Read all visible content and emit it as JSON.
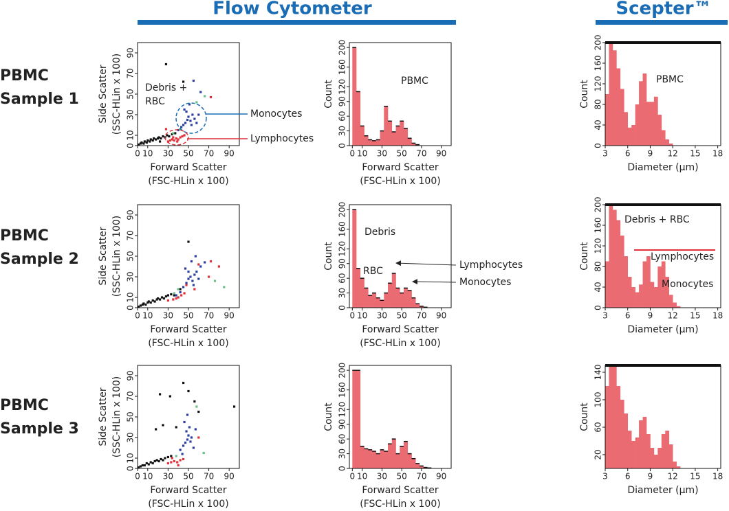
{
  "headers": [
    "Flow Cytometer",
    "Scepter™"
  ],
  "row_labels": [
    [
      "PBMC",
      "Sample 1"
    ],
    [
      "PBMC",
      "Sample 2"
    ],
    [
      "PBMC",
      "Sample 3"
    ]
  ],
  "chart_data": [
    {
      "type": "scatter",
      "xlabel": [
        "Forward Scatter",
        "(FSC-HLin x 100)"
      ],
      "ylabel": [
        "Side Scatter",
        "(SSC-HLin x 100)"
      ],
      "xlim": [
        0,
        100
      ],
      "ylim": [
        0,
        100
      ],
      "xticks": [
        0,
        10,
        30,
        50,
        70,
        90
      ],
      "yticks": [
        0,
        10,
        30,
        50,
        70,
        90
      ],
      "series": [
        {
          "color": "#111111",
          "x": [
            1,
            3,
            4,
            6,
            7,
            9,
            10,
            12,
            13,
            15,
            16,
            18,
            20,
            21,
            23,
            25,
            27,
            29,
            31,
            34,
            37,
            28,
            45,
            22
          ],
          "y": [
            1,
            2,
            3,
            2,
            4,
            3,
            5,
            4,
            6,
            5,
            7,
            6,
            7,
            8,
            7,
            9,
            8,
            10,
            9,
            11,
            12,
            79,
            62,
            4
          ]
        },
        {
          "color": "#e0303a",
          "x": [
            30,
            32,
            34,
            36,
            38,
            40,
            42,
            35,
            39,
            44,
            46,
            72,
            28
          ],
          "y": [
            4,
            5,
            6,
            5,
            7,
            6,
            8,
            8,
            4,
            9,
            10,
            47,
            16
          ]
        },
        {
          "color": "#2b3f9e",
          "x": [
            40,
            43,
            45,
            47,
            49,
            50,
            52,
            54,
            56,
            48,
            53,
            46,
            51,
            58,
            60,
            55,
            62
          ],
          "y": [
            15,
            18,
            20,
            22,
            25,
            28,
            24,
            30,
            26,
            33,
            20,
            35,
            40,
            22,
            30,
            63,
            52
          ]
        },
        {
          "color": "#6dbf8a",
          "x": [
            35,
            42,
            58,
            66
          ],
          "y": [
            12,
            16,
            42,
            48
          ]
        }
      ],
      "annotations": [
        "Debris +",
        "RBC",
        "Monocytes",
        "Lymphocytes"
      ]
    },
    {
      "type": "histogram",
      "color": "#ea6b72",
      "outline": true,
      "xlabel": [
        "Forward Scatter",
        "(FSC-HLin x 100)"
      ],
      "ylabel": "Count",
      "xlim": [
        -3,
        100
      ],
      "ylim": [
        0,
        210
      ],
      "xticks": [
        0,
        10,
        30,
        50,
        70,
        90
      ],
      "yticks": [
        0,
        30,
        60,
        90,
        120,
        160,
        200
      ],
      "bins": [
        0,
        4,
        8,
        12,
        16,
        20,
        24,
        28,
        32,
        36,
        40,
        44,
        48,
        52,
        56,
        60,
        64,
        68,
        72,
        76,
        80,
        84,
        88,
        92,
        96,
        100
      ],
      "counts": [
        200,
        110,
        40,
        20,
        12,
        10,
        12,
        30,
        80,
        50,
        28,
        40,
        50,
        35,
        15,
        5,
        2,
        0,
        0,
        0,
        0,
        0,
        0,
        0,
        0
      ],
      "annotations": [
        "PBMC"
      ]
    },
    {
      "type": "histogram",
      "color": "#ea6b72",
      "outline": false,
      "xlabel": [
        "Diameter (µm)"
      ],
      "ylabel": "Count",
      "xlim": [
        3,
        18.4
      ],
      "ylim": [
        0,
        200
      ],
      "xticks": [
        3,
        6,
        9,
        12,
        15,
        18
      ],
      "yticks": [
        0,
        40,
        80,
        120,
        160,
        200
      ],
      "bins": [
        3,
        3.5,
        4,
        4.5,
        5,
        5.5,
        6,
        6.5,
        7,
        7.5,
        8,
        8.5,
        9,
        9.5,
        10,
        10.5,
        11,
        11.5,
        12,
        12.5,
        13,
        13.5,
        14,
        14.5,
        15,
        15.5,
        16,
        16.5,
        17,
        17.5,
        18
      ],
      "counts": [
        100,
        200,
        185,
        150,
        110,
        65,
        35,
        40,
        80,
        125,
        140,
        85,
        85,
        95,
        60,
        30,
        12,
        4,
        0,
        0,
        0,
        0,
        0,
        0,
        0,
        0,
        0,
        0,
        0,
        0
      ],
      "annotations": [
        "PBMC"
      ]
    },
    {
      "type": "scatter",
      "xlabel": [
        "Forward Scatter",
        "(FSC-HLin x 100)"
      ],
      "ylabel": [
        "Side Scatter",
        "(SSC-HLin x 100)"
      ],
      "xlim": [
        0,
        100
      ],
      "ylim": [
        0,
        100
      ],
      "xticks": [
        0,
        10,
        30,
        50,
        70,
        90
      ],
      "yticks": [
        0,
        10,
        30,
        50,
        70,
        90
      ],
      "series": [
        {
          "color": "#111111",
          "x": [
            1,
            3,
            5,
            6,
            8,
            10,
            11,
            13,
            15,
            17,
            19,
            20,
            22,
            24,
            26,
            28,
            30,
            33,
            36,
            50,
            42
          ],
          "y": [
            1,
            2,
            3,
            4,
            3,
            5,
            6,
            5,
            7,
            6,
            8,
            9,
            8,
            10,
            9,
            11,
            12,
            13,
            12,
            64,
            18
          ]
        },
        {
          "color": "#e0303a",
          "x": [
            35,
            38,
            40,
            43,
            46,
            30,
            60,
            72,
            70,
            80,
            48,
            56
          ],
          "y": [
            8,
            9,
            10,
            12,
            14,
            7,
            42,
            45,
            30,
            40,
            22,
            18
          ]
        },
        {
          "color": "#2b3f9e",
          "x": [
            45,
            48,
            50,
            52,
            54,
            56,
            58,
            55,
            50,
            47,
            60,
            53,
            62,
            57,
            66,
            42,
            38
          ],
          "y": [
            20,
            24,
            28,
            30,
            26,
            32,
            35,
            22,
            35,
            38,
            28,
            45,
            40,
            50,
            44,
            15,
            12
          ]
        },
        {
          "color": "#6dbf8a",
          "x": [
            36,
            40,
            76,
            85
          ],
          "y": [
            14,
            18,
            26,
            20
          ]
        }
      ]
    },
    {
      "type": "histogram",
      "color": "#ea6b72",
      "outline": true,
      "xlabel": [
        "Forward Scatter",
        "(FSC-HLin x 100)"
      ],
      "ylabel": "Count",
      "xlim": [
        -3,
        100
      ],
      "ylim": [
        0,
        210
      ],
      "xticks": [
        0,
        10,
        30,
        50,
        70,
        90
      ],
      "yticks": [
        0,
        30,
        60,
        90,
        120,
        160,
        200
      ],
      "bins": [
        0,
        4,
        8,
        12,
        16,
        20,
        24,
        28,
        32,
        36,
        40,
        44,
        48,
        52,
        56,
        60,
        64,
        68,
        72,
        76,
        80,
        84,
        88,
        92,
        96,
        100
      ],
      "counts": [
        200,
        80,
        60,
        40,
        25,
        30,
        20,
        15,
        30,
        50,
        70,
        40,
        30,
        40,
        35,
        20,
        8,
        3,
        1,
        0,
        0,
        0,
        0,
        0,
        0
      ],
      "annotations": [
        "Debris",
        "RBC",
        "Lymphocytes",
        "Monocytes"
      ]
    },
    {
      "type": "histogram",
      "color": "#ea6b72",
      "outline": false,
      "xlabel": [
        "Diameter (µm)"
      ],
      "ylabel": "Count",
      "xlim": [
        3,
        18.4
      ],
      "ylim": [
        0,
        200
      ],
      "xticks": [
        3,
        6,
        9,
        12,
        15,
        18
      ],
      "yticks": [
        0,
        40,
        80,
        120,
        160,
        200
      ],
      "bins": [
        3,
        3.5,
        4,
        4.5,
        5,
        5.5,
        6,
        6.5,
        7,
        7.5,
        8,
        8.5,
        9,
        9.5,
        10,
        10.5,
        11,
        11.5,
        12,
        12.5,
        13,
        13.5,
        14,
        14.5,
        15,
        15.5,
        16,
        16.5,
        17,
        17.5,
        18
      ],
      "counts": [
        90,
        200,
        190,
        170,
        140,
        100,
        60,
        40,
        30,
        45,
        90,
        100,
        50,
        40,
        80,
        90,
        60,
        25,
        10,
        3,
        0,
        0,
        0,
        0,
        0,
        0,
        0,
        0,
        0,
        0
      ],
      "annotations": [
        "Debris + RBC",
        "Lymphocytes",
        "Monocytes"
      ]
    },
    {
      "type": "scatter",
      "xlabel": [
        "Forward Scatter",
        "(FSC-HLin x 100)"
      ],
      "ylabel": [
        "Side Scatter",
        "(SSC-HLin x 100)"
      ],
      "xlim": [
        0,
        100
      ],
      "ylim": [
        0,
        100
      ],
      "xticks": [
        0,
        10,
        30,
        50,
        70,
        90
      ],
      "yticks": [
        0,
        10,
        30,
        50,
        70,
        90
      ],
      "series": [
        {
          "color": "#111111",
          "x": [
            1,
            3,
            5,
            7,
            9,
            11,
            13,
            15,
            17,
            19,
            21,
            23,
            25,
            27,
            30,
            33,
            22,
            45,
            32,
            50,
            56,
            60,
            95,
            38,
            25,
            18
          ],
          "y": [
            1,
            2,
            3,
            3,
            5,
            4,
            6,
            5,
            7,
            8,
            7,
            9,
            8,
            10,
            11,
            12,
            72,
            83,
            70,
            75,
            65,
            55,
            60,
            40,
            42,
            38
          ]
        },
        {
          "color": "#e0303a",
          "x": [
            30,
            33,
            36,
            39,
            42,
            45,
            34,
            60,
            40
          ],
          "y": [
            5,
            6,
            7,
            6,
            8,
            9,
            10,
            30,
            3
          ]
        },
        {
          "color": "#2b3f9e",
          "x": [
            42,
            45,
            47,
            49,
            50,
            52,
            48,
            51,
            53,
            46,
            55,
            49,
            44,
            57
          ],
          "y": [
            18,
            22,
            25,
            28,
            32,
            26,
            36,
            40,
            30,
            45,
            20,
            52,
            14,
            38
          ]
        },
        {
          "color": "#6dbf8a",
          "x": [
            38,
            65,
            58
          ],
          "y": [
            12,
            15,
            60
          ]
        }
      ]
    },
    {
      "type": "histogram",
      "color": "#ea6b72",
      "outline": true,
      "xlabel": [
        "Forward Scatter",
        "(FSC-HLin x 100)"
      ],
      "ylabel": "Count",
      "xlim": [
        -3,
        100
      ],
      "ylim": [
        0,
        210
      ],
      "xticks": [
        0,
        10,
        30,
        50,
        70,
        90
      ],
      "yticks": [
        0,
        30,
        60,
        90,
        120,
        160,
        200
      ],
      "bins": [
        0,
        4,
        8,
        12,
        16,
        20,
        24,
        28,
        32,
        36,
        40,
        44,
        48,
        52,
        56,
        60,
        64,
        68,
        72,
        76,
        80,
        84,
        88,
        92,
        96,
        100
      ],
      "counts": [
        200,
        200,
        45,
        40,
        38,
        35,
        30,
        38,
        35,
        50,
        60,
        30,
        45,
        55,
        30,
        20,
        10,
        5,
        2,
        1,
        0,
        0,
        0,
        0,
        0
      ]
    },
    {
      "type": "histogram",
      "color": "#ea6b72",
      "outline": false,
      "xlabel": [
        "Diameter (µm)"
      ],
      "ylabel": "Count",
      "xlim": [
        3,
        18.4
      ],
      "ylim": [
        0,
        150
      ],
      "xticks": [
        3,
        6,
        9,
        12,
        15,
        18
      ],
      "yticks": [
        20,
        60,
        100,
        140
      ],
      "bins": [
        3,
        3.5,
        4,
        4.5,
        5,
        5.5,
        6,
        6.5,
        7,
        7.5,
        8,
        8.5,
        9,
        9.5,
        10,
        10.5,
        11,
        11.5,
        12,
        12.5,
        13,
        13.5,
        14,
        14.5,
        15,
        15.5,
        16,
        16.5,
        17,
        17.5,
        18
      ],
      "counts": [
        120,
        150,
        150,
        120,
        100,
        80,
        55,
        40,
        45,
        70,
        75,
        50,
        30,
        20,
        30,
        50,
        55,
        35,
        10,
        3,
        0,
        0,
        0,
        0,
        0,
        0,
        0,
        0,
        0,
        0
      ]
    }
  ]
}
